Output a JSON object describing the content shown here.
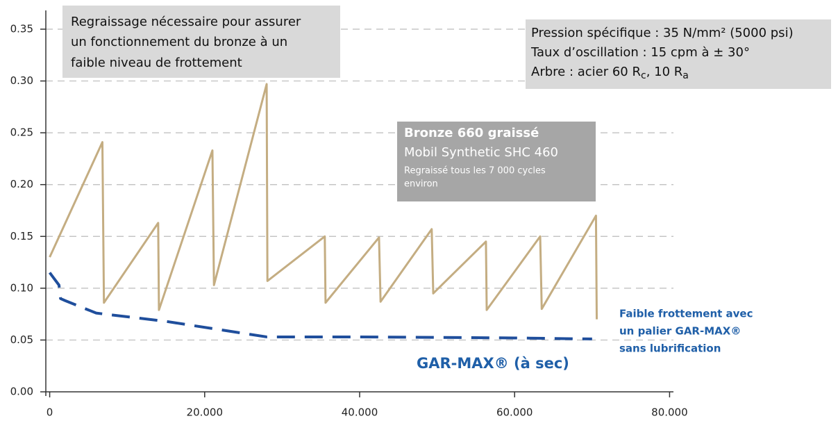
{
  "chart_data": {
    "type": "line",
    "xlim": [
      -500,
      80500
    ],
    "ylim": [
      0,
      0.35
    ],
    "xticks": [
      0,
      {
        "value": 20000,
        "label": "20.000"
      },
      {
        "value": 40000,
        "label": "40.000"
      },
      {
        "value": 60000,
        "label": "60.000"
      },
      {
        "value": 80000,
        "label": "80.000"
      }
    ],
    "yticks": [
      {
        "value": 0,
        "label": "0.00"
      },
      0.05,
      {
        "value": 0.1,
        "label": "0.10"
      },
      0.15,
      {
        "value": 0.2,
        "label": "0.20"
      },
      0.25,
      {
        "value": 0.3,
        "label": "0.30"
      },
      0.35
    ],
    "grid": true,
    "series": [
      {
        "name": "Bronze 660 graissé",
        "color": "#c4ad82",
        "dashed": false,
        "x": [
          0,
          6800,
          7000,
          14000,
          14100,
          21000,
          21200,
          28000,
          28100,
          35500,
          35600,
          42500,
          42700,
          49300,
          49500,
          56300,
          56400,
          63300,
          63500,
          70500,
          70600
        ],
        "values": [
          0.13,
          0.241,
          0.086,
          0.163,
          0.079,
          0.233,
          0.103,
          0.297,
          0.107,
          0.15,
          0.086,
          0.149,
          0.087,
          0.157,
          0.095,
          0.145,
          0.079,
          0.15,
          0.08,
          0.17,
          0.07
        ]
      },
      {
        "name": "GAR-MAX® (à sec)",
        "color": "#1f4e9c",
        "dashed": true,
        "x": [
          0,
          500,
          1200,
          1400,
          2000,
          6000,
          15000,
          28000,
          40000,
          60000,
          70000
        ],
        "values": [
          0.115,
          0.11,
          0.103,
          0.09,
          0.088,
          0.076,
          0.068,
          0.053,
          0.053,
          0.052,
          0.051
        ]
      }
    ],
    "annotations": {
      "note": [
        "Regraissage nécessaire pour assurer",
        "un fonctionnement du bronze à un",
        "faible niveau de frottement"
      ],
      "conditions": [
        "Pression spécifique : 35 N/mm² (5000 psi)",
        "Taux d’oscillation : 15 cpm à ± 30°"
      ],
      "shaft": [
        "Arbre : acier 60 R",
        "c",
        ", 10 R",
        "a"
      ],
      "bronze": [
        "Mobil Synthetic SHC 460",
        "Regraissé tous les 7 000 cycles",
        "environ"
      ],
      "garmax": [
        "Faible frottement avec",
        "un palier GAR-MAX®",
        "sans lubrification"
      ]
    }
  }
}
